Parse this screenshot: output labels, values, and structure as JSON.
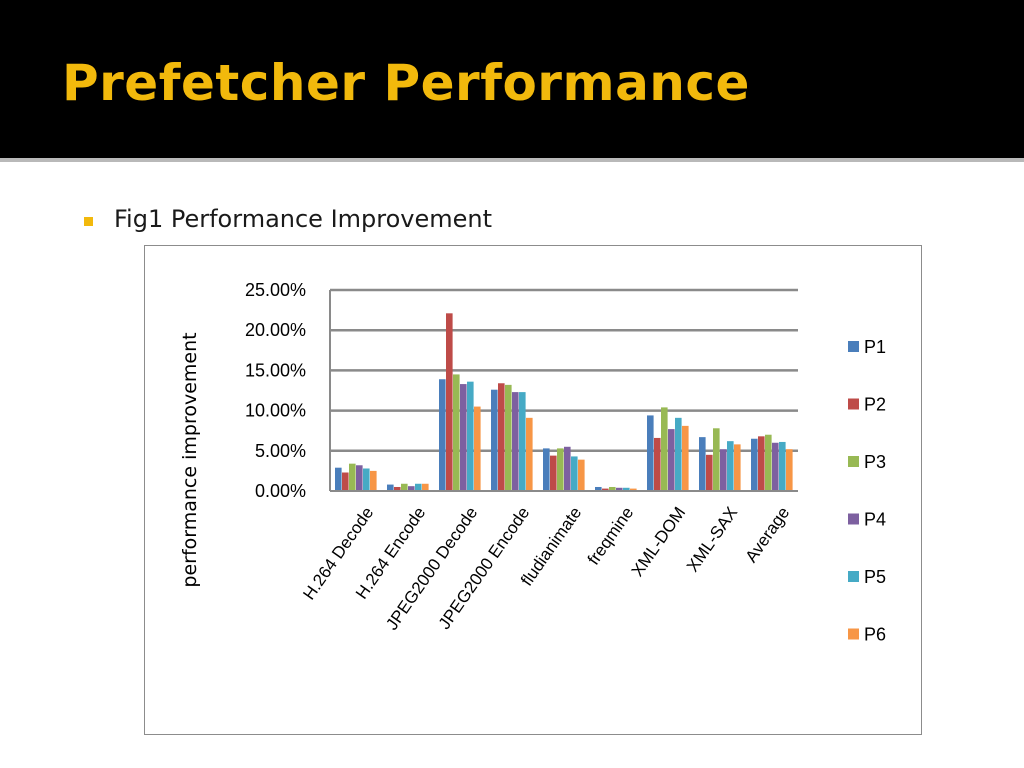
{
  "slide": {
    "title": "Prefetcher Performance",
    "bullet": "Fig1 Performance Improvement",
    "accent_color": "#f2b90c"
  },
  "chart_data": {
    "type": "bar",
    "ylabel": "performance improvement",
    "ylim": [
      0,
      25
    ],
    "yticks": [
      "0.00%",
      "5.00%",
      "10.00%",
      "15.00%",
      "20.00%",
      "25.00%"
    ],
    "grid": true,
    "legend_position": "right",
    "categories": [
      "H.264 Decode",
      "H.264 Encode",
      "JPEG2000 Decode",
      "JPEG2000 Encode",
      "fludianimate",
      "freqmine",
      "XML-DOM",
      "XML-SAX",
      "Average"
    ],
    "series": [
      {
        "name": "P1",
        "color": "#4a7ebb",
        "values": [
          2.9,
          0.8,
          13.9,
          12.6,
          5.3,
          0.5,
          9.4,
          6.7,
          6.5
        ]
      },
      {
        "name": "P2",
        "color": "#be4b48",
        "values": [
          2.3,
          0.5,
          22.1,
          13.4,
          4.4,
          0.3,
          6.6,
          4.5,
          6.8
        ]
      },
      {
        "name": "P3",
        "color": "#98b954",
        "values": [
          3.4,
          0.9,
          14.5,
          13.2,
          5.3,
          0.5,
          10.4,
          7.8,
          7.0
        ]
      },
      {
        "name": "P4",
        "color": "#7d60a0",
        "values": [
          3.2,
          0.6,
          13.3,
          12.3,
          5.5,
          0.4,
          7.7,
          5.2,
          6.0
        ]
      },
      {
        "name": "P5",
        "color": "#46aac5",
        "values": [
          2.8,
          0.9,
          13.6,
          12.3,
          4.3,
          0.4,
          9.1,
          6.2,
          6.1
        ]
      },
      {
        "name": "P6",
        "color": "#f79646",
        "values": [
          2.5,
          0.9,
          10.5,
          9.1,
          3.9,
          0.3,
          8.1,
          5.8,
          5.2
        ]
      }
    ]
  }
}
